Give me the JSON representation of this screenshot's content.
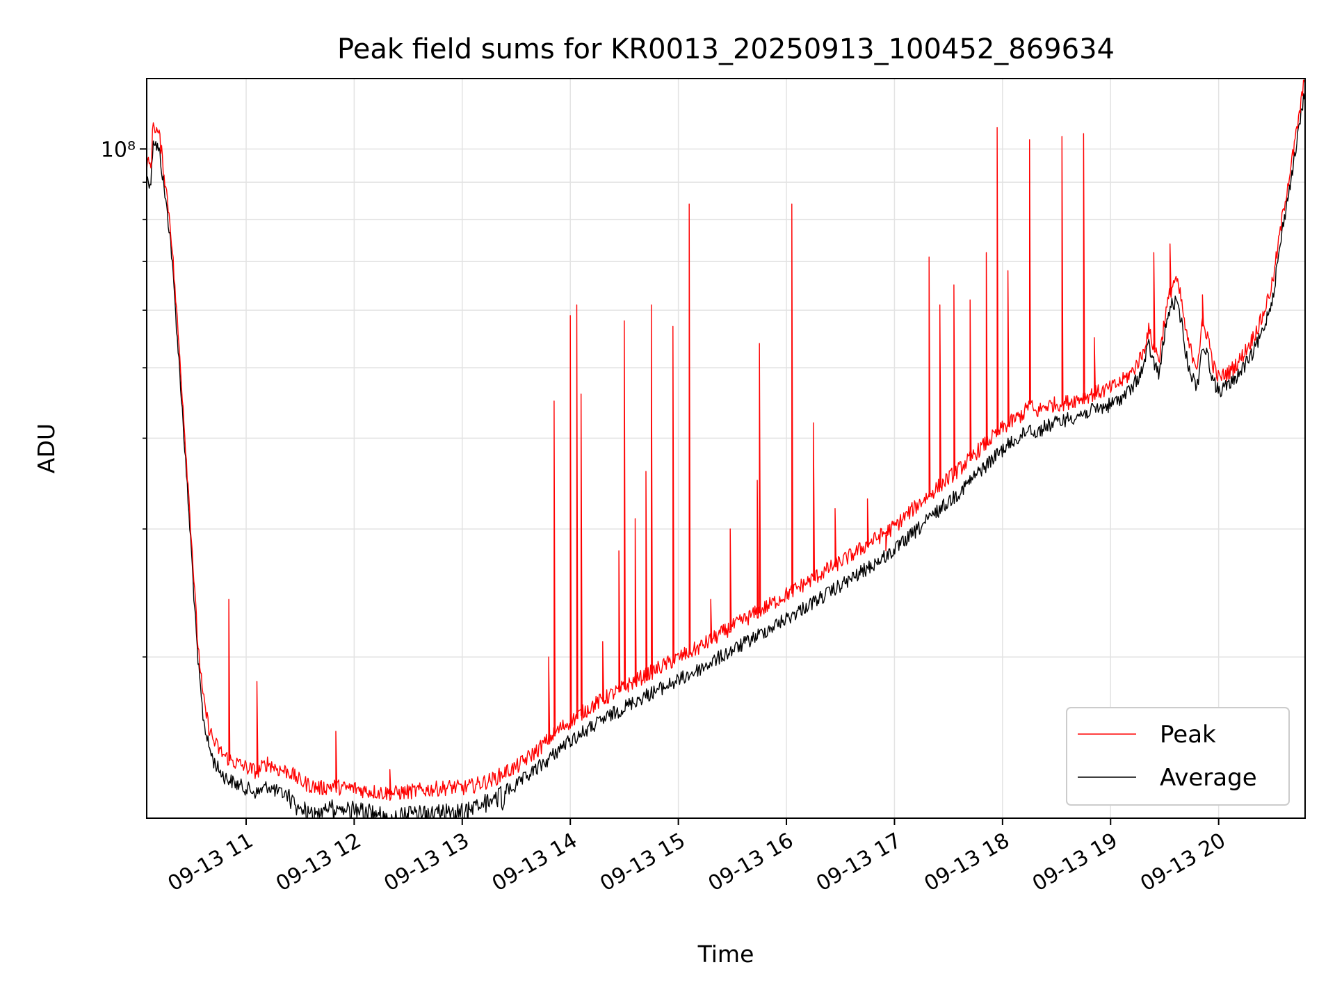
{
  "chart_data": {
    "type": "line",
    "title": "Peak field sums for KR0013_20250913_100452_869634",
    "xlabel": "Time",
    "ylabel": "ADU",
    "yscale": "log",
    "grid": true,
    "legend_position": "lower-right",
    "x_unit": "hour",
    "xlim": [
      10.08,
      20.8
    ],
    "ylim": [
      12000000,
      125000000
    ],
    "x_ticks": [
      11,
      12,
      13,
      14,
      15,
      16,
      17,
      18,
      19,
      20
    ],
    "x_tick_labels": [
      "09-13 11",
      "09-13 12",
      "09-13 13",
      "09-13 14",
      "09-13 15",
      "09-13 16",
      "09-13 17",
      "09-13 18",
      "09-13 19",
      "09-13 20"
    ],
    "y_ticks": [
      100000000
    ],
    "y_tick_labels": [
      "10⁸"
    ],
    "y_minor_ticks": [
      20000000,
      30000000,
      40000000,
      50000000,
      60000000,
      70000000,
      80000000,
      90000000
    ],
    "series": [
      {
        "name": "Peak",
        "color": "#ff0000",
        "x": [
          10.08,
          10.12,
          10.14,
          10.2,
          10.3,
          10.4,
          10.5,
          10.55,
          10.6,
          10.65,
          10.7,
          10.75,
          10.8,
          10.9,
          11.0,
          11.1,
          11.2,
          11.3,
          11.4,
          11.5,
          11.6,
          11.7,
          11.8,
          11.9,
          12.0,
          12.1,
          12.2,
          12.3,
          12.4,
          12.5,
          12.6,
          12.7,
          12.8,
          12.9,
          13.0,
          13.1,
          13.2,
          13.3,
          13.4,
          13.5,
          13.6,
          13.7,
          13.8,
          13.9,
          14.0,
          14.2,
          14.4,
          14.6,
          14.8,
          15.0,
          15.2,
          15.4,
          15.6,
          15.8,
          16.0,
          16.2,
          16.4,
          16.6,
          16.8,
          17.0,
          17.2,
          17.4,
          17.6,
          17.8,
          18.0,
          18.1,
          18.2,
          18.25,
          18.3,
          18.4,
          18.6,
          18.8,
          19.0,
          19.1,
          19.2,
          19.3,
          19.35,
          19.4,
          19.45,
          19.5,
          19.55,
          19.6,
          19.65,
          19.7,
          19.75,
          19.8,
          19.85,
          19.9,
          19.95,
          20.0,
          20.1,
          20.2,
          20.3,
          20.4,
          20.5,
          20.6,
          20.7,
          20.8
        ],
        "y": [
          95000000,
          94000000,
          108000000,
          103000000,
          78000000,
          48000000,
          28000000,
          21000000,
          17500000,
          16000000,
          15200000,
          14800000,
          14500000,
          14200000,
          14000000,
          13800000,
          14200000,
          13900000,
          13800000,
          13400000,
          13200000,
          13100000,
          13200000,
          13100000,
          13100000,
          13000000,
          12950000,
          12900000,
          12900000,
          12950000,
          13000000,
          13050000,
          13100000,
          13150000,
          13100000,
          13200000,
          13350000,
          13500000,
          13800000,
          14000000,
          14400000,
          14800000,
          15300000,
          15800000,
          16200000,
          17000000,
          17700000,
          18400000,
          19100000,
          19800000,
          20500000,
          21400000,
          22300000,
          23200000,
          24200000,
          25200000,
          26300000,
          27400000,
          28700000,
          30000000,
          32000000,
          34000000,
          36000000,
          38500000,
          41000000,
          42000000,
          43000000,
          44500000,
          43000000,
          44000000,
          44500000,
          45500000,
          46500000,
          47500000,
          49000000,
          52000000,
          56000000,
          53000000,
          51000000,
          58000000,
          63000000,
          66000000,
          62000000,
          55000000,
          52000000,
          50000000,
          57000000,
          55000000,
          50000000,
          48000000,
          49000000,
          51000000,
          54000000,
          58000000,
          65000000,
          82000000,
          100000000,
          125000000
        ],
        "spikes": [
          [
            10.84,
            24000000
          ],
          [
            11.1,
            18500000
          ],
          [
            11.83,
            15800000
          ],
          [
            12.33,
            14000000
          ],
          [
            13.8,
            20000000
          ],
          [
            13.85,
            45000000
          ],
          [
            14.0,
            59000000
          ],
          [
            14.06,
            61000000
          ],
          [
            14.1,
            46000000
          ],
          [
            14.3,
            21000000
          ],
          [
            14.45,
            28000000
          ],
          [
            14.5,
            58000000
          ],
          [
            14.6,
            31000000
          ],
          [
            14.7,
            36000000
          ],
          [
            14.75,
            61000000
          ],
          [
            14.95,
            57000000
          ],
          [
            15.1,
            84000000
          ],
          [
            15.3,
            24000000
          ],
          [
            15.48,
            30000000
          ],
          [
            15.73,
            35000000
          ],
          [
            15.75,
            54000000
          ],
          [
            16.05,
            84000000
          ],
          [
            16.25,
            42000000
          ],
          [
            16.45,
            32000000
          ],
          [
            16.75,
            33000000
          ],
          [
            16.92,
            28000000
          ],
          [
            17.32,
            71000000
          ],
          [
            17.42,
            61000000
          ],
          [
            17.55,
            65000000
          ],
          [
            17.7,
            62000000
          ],
          [
            17.85,
            72000000
          ],
          [
            17.95,
            107000000
          ],
          [
            18.05,
            68000000
          ],
          [
            18.25,
            103000000
          ],
          [
            18.55,
            104000000
          ],
          [
            18.75,
            105000000
          ],
          [
            18.85,
            55000000
          ],
          [
            19.4,
            72000000
          ],
          [
            19.55,
            74000000
          ],
          [
            19.85,
            63000000
          ]
        ]
      },
      {
        "name": "Average",
        "color": "#000000",
        "x": [
          10.08,
          10.12,
          10.14,
          10.2,
          10.3,
          10.4,
          10.5,
          10.55,
          10.6,
          10.65,
          10.7,
          10.75,
          10.8,
          10.9,
          11.0,
          11.1,
          11.2,
          11.3,
          11.4,
          11.5,
          11.6,
          11.7,
          11.8,
          11.9,
          12.0,
          12.1,
          12.2,
          12.3,
          12.4,
          12.5,
          12.6,
          12.7,
          12.8,
          12.9,
          13.0,
          13.1,
          13.2,
          13.3,
          13.4,
          13.5,
          13.6,
          13.7,
          13.8,
          13.9,
          14.0,
          14.2,
          14.4,
          14.6,
          14.8,
          15.0,
          15.2,
          15.4,
          15.6,
          15.8,
          16.0,
          16.2,
          16.4,
          16.6,
          16.8,
          17.0,
          17.2,
          17.4,
          17.6,
          17.8,
          18.0,
          18.1,
          18.2,
          18.25,
          18.3,
          18.4,
          18.6,
          18.8,
          19.0,
          19.1,
          19.2,
          19.3,
          19.35,
          19.4,
          19.45,
          19.5,
          19.55,
          19.6,
          19.65,
          19.7,
          19.75,
          19.8,
          19.85,
          19.9,
          19.95,
          20.0,
          20.1,
          20.2,
          20.3,
          20.4,
          20.5,
          20.6,
          20.7,
          20.8
        ],
        "y": [
          93000000,
          92000000,
          106000000,
          101000000,
          77000000,
          47000000,
          27500000,
          20500000,
          17000000,
          15500000,
          14700000,
          14300000,
          14000000,
          13700000,
          13500000,
          13300000,
          13600000,
          13300000,
          13200000,
          12700000,
          12600000,
          12500000,
          12800000,
          12700000,
          12700000,
          12600000,
          12500000,
          12400000,
          12400000,
          12450000,
          12500000,
          12550000,
          12600000,
          12650000,
          12700000,
          12800000,
          12950000,
          13100000,
          13400000,
          13600000,
          14000000,
          14400000,
          14800000,
          15300000,
          15700000,
          16400000,
          17100000,
          17800000,
          18400000,
          19000000,
          19700000,
          20500000,
          21300000,
          22200000,
          23100000,
          24100000,
          25100000,
          26200000,
          27400000,
          28700000,
          30500000,
          32500000,
          34500000,
          37000000,
          39500000,
          40500000,
          41500000,
          42500000,
          41500000,
          42500000,
          43500000,
          44500000,
          45500000,
          46500000,
          48000000,
          51000000,
          55000000,
          52000000,
          50000000,
          57000000,
          62000000,
          63000000,
          60000000,
          53000000,
          50000000,
          48000000,
          55000000,
          53000000,
          49000000,
          47500000,
          48500000,
          50500000,
          53000000,
          57000000,
          64000000,
          81000000,
          99000000,
          124000000
        ]
      }
    ]
  }
}
